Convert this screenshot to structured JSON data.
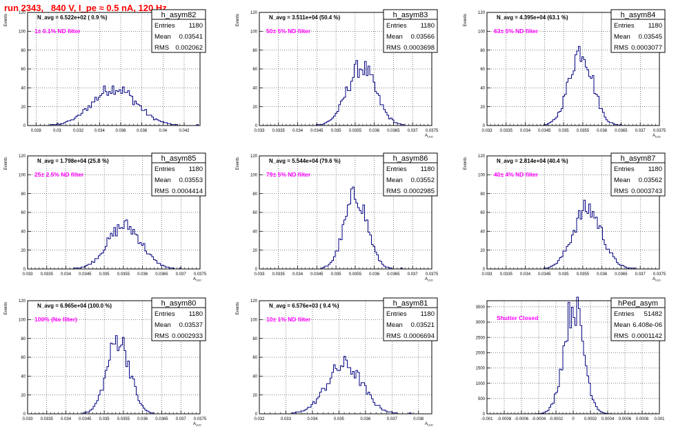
{
  "title": "run 2343,   840 V, I_pe ≈ 0.5 nA, 120 Hz",
  "colors": {
    "title": "#ff0000",
    "annotation": "#ff00ff",
    "histogram": "#000080",
    "frame": "#000000",
    "grid": "#000000"
  },
  "chart_data": [
    {
      "type": "histogram",
      "name": "h_asym82",
      "stats": {
        "entries_label": "Entries",
        "entries": "1180",
        "mean_label": "Mean",
        "mean": "0.03541",
        "rms_label": "RMS",
        "rms": "0.002062"
      },
      "navg": "N_avg = 6.522e+02 ( 0.9 %)",
      "filter": "1± 0.1% ND filter",
      "ylabel": "Events",
      "xlabel": "",
      "xlim": [
        0.0272,
        0.0435
      ],
      "ylim": [
        0,
        120
      ],
      "xticks": [
        0.028,
        0.03,
        0.032,
        0.034,
        0.036,
        0.038,
        0.04,
        0.042
      ],
      "xtick_labels": [
        "0.028",
        "0.03",
        "0.032",
        "0.034",
        "0.036",
        "0.038",
        "0.04",
        "0.042"
      ],
      "yticks": [
        0,
        20,
        40,
        60,
        80,
        100,
        120
      ],
      "mean_val": 0.03541,
      "sigma": 0.002062,
      "peak": 40
    },
    {
      "type": "histogram",
      "name": "h_asym83",
      "stats": {
        "entries_label": "Entries",
        "entries": "1180",
        "mean_label": "Mean",
        "mean": "0.03566",
        "rms_label": "RMS",
        "rms": "0.0003698"
      },
      "navg": "N_avg = 3.511e+04 (50.4 %)",
      "filter": "50± 5% ND filter",
      "ylabel": "Events",
      "xlabel": "A_LED",
      "xlim": [
        0.033,
        0.0375
      ],
      "ylim": [
        0,
        120
      ],
      "xticks": [
        0.033,
        0.0335,
        0.034,
        0.0345,
        0.035,
        0.0355,
        0.036,
        0.0365,
        0.037,
        0.0375
      ],
      "xtick_labels": [
        "0.033",
        "0.0335",
        "0.034",
        "0.0345",
        "0.035",
        "0.0355",
        "0.036",
        "0.0365",
        "0.037",
        "0.0375"
      ],
      "yticks": [
        0,
        20,
        40,
        60,
        80,
        100,
        120
      ],
      "mean_val": 0.03566,
      "sigma": 0.0003698,
      "peak": 62
    },
    {
      "type": "histogram",
      "name": "h_asym84",
      "stats": {
        "entries_label": "Entries",
        "entries": "1180",
        "mean_label": "Mean",
        "mean": "0.03545",
        "rms_label": "RMS",
        "rms": "0.0003077"
      },
      "navg": "N_avg = 4.395e+04 (63.1 %)",
      "filter": "63± 5% ND filter",
      "ylabel": "Events",
      "xlabel": "A_LED",
      "xlim": [
        0.033,
        0.0375
      ],
      "ylim": [
        0,
        120
      ],
      "xticks": [
        0.033,
        0.0335,
        0.034,
        0.0345,
        0.035,
        0.0355,
        0.036,
        0.0365,
        0.037,
        0.0375
      ],
      "xtick_labels": [
        "0.033",
        "0.0335",
        "0.034",
        "0.0345",
        "0.035",
        "0.0355",
        "0.036",
        "0.0365",
        "0.037",
        "0.0375"
      ],
      "yticks": [
        0,
        20,
        40,
        60,
        80,
        100,
        120
      ],
      "mean_val": 0.03545,
      "sigma": 0.0003077,
      "peak": 80
    },
    {
      "type": "histogram",
      "name": "h_asym85",
      "stats": {
        "entries_label": "Entries",
        "entries": "1180",
        "mean_label": "Mean",
        "mean": "0.03553",
        "rms_label": "RMS",
        "rms": "0.0004414"
      },
      "navg": "N_avg = 1.798e+04 (25.8 %)",
      "filter": "25± 2.5% ND filter",
      "ylabel": "Events",
      "xlabel": "A_LED",
      "xlim": [
        0.033,
        0.0375
      ],
      "ylim": [
        0,
        120
      ],
      "xticks": [
        0.033,
        0.0335,
        0.034,
        0.0345,
        0.035,
        0.0355,
        0.036,
        0.0365,
        0.037,
        0.0375
      ],
      "xtick_labels": [
        "0.033",
        "0.0335",
        "0.034",
        "0.0345",
        "0.035",
        "0.0355",
        "0.036",
        "0.0365",
        "0.037",
        "0.0375"
      ],
      "yticks": [
        0,
        20,
        40,
        60,
        80,
        100,
        120
      ],
      "mean_val": 0.03553,
      "sigma": 0.0004414,
      "peak": 46
    },
    {
      "type": "histogram",
      "name": "h_asym86",
      "stats": {
        "entries_label": "Entries",
        "entries": "1180",
        "mean_label": "Mean",
        "mean": "0.03552",
        "rms_label": "RMS",
        "rms": "0.0002985"
      },
      "navg": "N_avg = 5.544e+04 (79.6 %)",
      "filter": "79± 5% ND filter",
      "ylabel": "Events",
      "xlabel": "A_LED",
      "xlim": [
        0.033,
        0.0375
      ],
      "ylim": [
        0,
        120
      ],
      "xticks": [
        0.033,
        0.0335,
        0.034,
        0.0345,
        0.035,
        0.0355,
        0.036,
        0.0365,
        0.037,
        0.0375
      ],
      "xtick_labels": [
        "0.033",
        "0.0335",
        "0.034",
        "0.0345",
        "0.035",
        "0.0355",
        "0.036",
        "0.0365",
        "0.037",
        "0.0375"
      ],
      "yticks": [
        0,
        20,
        40,
        60,
        80,
        100,
        120
      ],
      "mean_val": 0.03552,
      "sigma": 0.0002985,
      "peak": 78
    },
    {
      "type": "histogram",
      "name": "h_asym87",
      "stats": {
        "entries_label": "Entries",
        "entries": "1180",
        "mean_label": "Mean",
        "mean": "0.03562",
        "rms_label": "RMS",
        "rms": "0.0003743"
      },
      "navg": "N_avg = 2.814e+04 (40.4 %)",
      "filter": "40± 4% ND filter",
      "ylabel": "Events",
      "xlabel": "A_LED",
      "xlim": [
        0.033,
        0.0375
      ],
      "ylim": [
        0,
        120
      ],
      "xticks": [
        0.033,
        0.0335,
        0.034,
        0.0345,
        0.035,
        0.0355,
        0.036,
        0.0365,
        0.037,
        0.0375
      ],
      "xtick_labels": [
        "0.033",
        "0.0335",
        "0.034",
        "0.0345",
        "0.035",
        "0.0355",
        "0.036",
        "0.0365",
        "0.037",
        "0.0375"
      ],
      "yticks": [
        0,
        20,
        40,
        60,
        80,
        100,
        120
      ],
      "mean_val": 0.03562,
      "sigma": 0.0003743,
      "peak": 64
    },
    {
      "type": "histogram",
      "name": "h_asym80",
      "stats": {
        "entries_label": "Entries",
        "entries": "1180",
        "mean_label": "Mean",
        "mean": "0.03537",
        "rms_label": "RMS",
        "rms": "0.0002933"
      },
      "navg": "N_avg = 6.965e+04 (100.0 %)",
      "filter": "100% (No filter)",
      "ylabel": "Events",
      "xlabel": "A_LED",
      "xlim": [
        0.033,
        0.0375
      ],
      "ylim": [
        0,
        120
      ],
      "xticks": [
        0.033,
        0.0335,
        0.034,
        0.0345,
        0.035,
        0.0355,
        0.036,
        0.0365,
        0.037,
        0.0375
      ],
      "xtick_labels": [
        "0.033",
        "0.0335",
        "0.034",
        "0.0345",
        "0.035",
        "0.0355",
        "0.036",
        "0.0365",
        "0.037",
        "0.0375"
      ],
      "yticks": [
        0,
        20,
        40,
        60,
        80,
        100,
        120
      ],
      "mean_val": 0.03537,
      "sigma": 0.0002933,
      "peak": 80
    },
    {
      "type": "histogram",
      "name": "h_asym81",
      "stats": {
        "entries_label": "Entries",
        "entries": "1180",
        "mean_label": "Mean",
        "mean": "0.03521",
        "rms_label": "RMS",
        "rms": "0.0006694"
      },
      "navg": "N_avg = 6.576e+03 ( 9.4 %)",
      "filter": "10± 1% ND filter",
      "ylabel": "Events",
      "xlabel": "A_LED",
      "xlim": [
        0.032,
        0.0385
      ],
      "ylim": [
        0,
        120
      ],
      "xticks": [
        0.032,
        0.033,
        0.034,
        0.035,
        0.036,
        0.037,
        0.038
      ],
      "xtick_labels": [
        "0.032",
        "0.033",
        "0.034",
        "0.035",
        "0.036",
        "0.037",
        "0.038"
      ],
      "yticks": [
        0,
        20,
        40,
        60,
        80,
        100,
        120
      ],
      "mean_val": 0.03521,
      "sigma": 0.0006694,
      "peak": 52
    },
    {
      "type": "histogram",
      "name": "hPed_asym",
      "stats": {
        "entries_label": "Entries",
        "entries": "51482",
        "mean_label": "Mean",
        "mean": "6.408e-06",
        "rms_label": "RMS",
        "rms": "0.0001142"
      },
      "navg": "",
      "filter": "Shutter Closed",
      "ylabel": "",
      "xlabel": "",
      "xlim": [
        -0.001,
        0.001
      ],
      "ylim": [
        0,
        3700
      ],
      "xticks": [
        -0.001,
        -0.0008,
        -0.0006,
        -0.0004,
        -0.0002,
        0,
        0.0002,
        0.0004,
        0.0006,
        0.0008,
        0.001
      ],
      "xtick_labels": [
        "-0.001",
        "-0.0008",
        "-0.0006",
        "-0.0004",
        "-0.0002",
        "0",
        "0.0002",
        "0.0004",
        "0.0006",
        "0.0008",
        "0.001"
      ],
      "yticks": [
        0,
        500,
        1000,
        1500,
        2000,
        2500,
        3000,
        3500
      ],
      "mean_val": 6.408e-06,
      "sigma": 0.0001142,
      "peak": 3550
    }
  ]
}
